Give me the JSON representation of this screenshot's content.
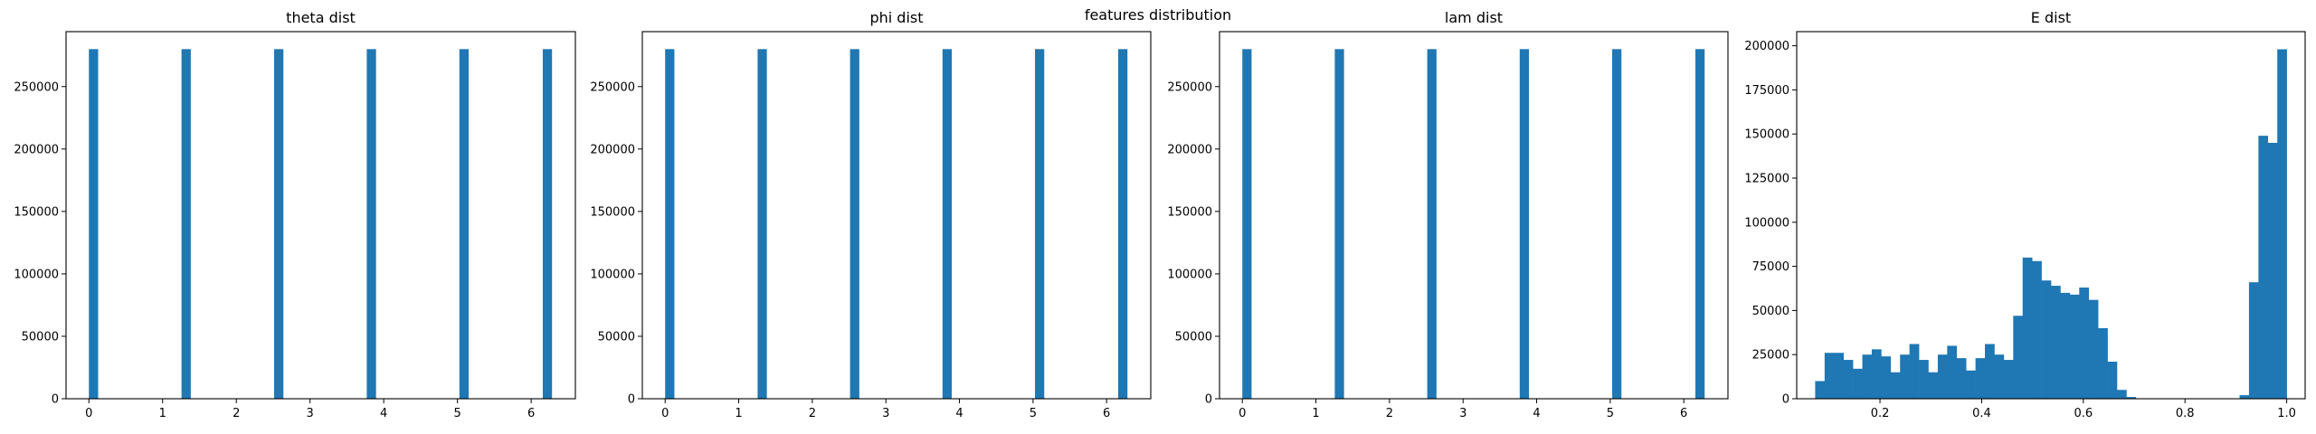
{
  "figure": {
    "suptitle": "features distribution"
  },
  "chart_data": [
    {
      "type": "histogram",
      "title": "theta dist",
      "bar_color": "#1f77b4",
      "bins": 50,
      "bin_range": [
        0,
        6.2832
      ],
      "bars": [
        {
          "x": 0.0,
          "height": 280000
        },
        {
          "x": 1.2566,
          "height": 280000
        },
        {
          "x": 2.5133,
          "height": 280000
        },
        {
          "x": 3.7699,
          "height": 280000
        },
        {
          "x": 5.0265,
          "height": 280000
        },
        {
          "x": 6.2832,
          "height": 280000
        }
      ],
      "xlim": [
        -0.31,
        6.6
      ],
      "ylim": [
        0,
        294000
      ],
      "xticks": [
        0,
        1,
        2,
        3,
        4,
        5,
        6
      ],
      "yticks": [
        0,
        50000,
        100000,
        150000,
        200000,
        250000
      ],
      "grid": false
    },
    {
      "type": "histogram",
      "title": "phi dist",
      "bar_color": "#1f77b4",
      "bins": 50,
      "bin_range": [
        0,
        6.2832
      ],
      "bars": [
        {
          "x": 0.0,
          "height": 280000
        },
        {
          "x": 1.2566,
          "height": 280000
        },
        {
          "x": 2.5133,
          "height": 280000
        },
        {
          "x": 3.7699,
          "height": 280000
        },
        {
          "x": 5.0265,
          "height": 280000
        },
        {
          "x": 6.2832,
          "height": 280000
        }
      ],
      "xlim": [
        -0.31,
        6.6
      ],
      "ylim": [
        0,
        294000
      ],
      "xticks": [
        0,
        1,
        2,
        3,
        4,
        5,
        6
      ],
      "yticks": [
        0,
        50000,
        100000,
        150000,
        200000,
        250000
      ],
      "grid": false
    },
    {
      "type": "histogram",
      "title": "lam dist",
      "bar_color": "#1f77b4",
      "bins": 50,
      "bin_range": [
        0,
        6.2832
      ],
      "bars": [
        {
          "x": 0.0,
          "height": 280000
        },
        {
          "x": 1.2566,
          "height": 280000
        },
        {
          "x": 2.5133,
          "height": 280000
        },
        {
          "x": 3.7699,
          "height": 280000
        },
        {
          "x": 5.0265,
          "height": 280000
        },
        {
          "x": 6.2832,
          "height": 280000
        }
      ],
      "xlim": [
        -0.31,
        6.6
      ],
      "ylim": [
        0,
        294000
      ],
      "xticks": [
        0,
        1,
        2,
        3,
        4,
        5,
        6
      ],
      "yticks": [
        0,
        50000,
        100000,
        150000,
        200000,
        250000
      ],
      "grid": false
    },
    {
      "type": "histogram",
      "title": "E dist",
      "bar_color": "#1f77b4",
      "bin_edges": [
        0.0725,
        0.0911,
        0.1096,
        0.1282,
        0.1467,
        0.1653,
        0.1838,
        0.2024,
        0.2209,
        0.2395,
        0.258,
        0.2766,
        0.2951,
        0.3137,
        0.3322,
        0.3508,
        0.3693,
        0.3879,
        0.4064,
        0.425,
        0.4435,
        0.4621,
        0.4806,
        0.4992,
        0.5177,
        0.5363,
        0.5548,
        0.5734,
        0.5919,
        0.6105,
        0.629,
        0.6476,
        0.6661,
        0.6847,
        0.7032,
        0.7218,
        0.7403,
        0.7589,
        0.7774,
        0.796,
        0.8145,
        0.8331,
        0.8516,
        0.8702,
        0.8887,
        0.9073,
        0.9258,
        0.9444,
        0.9629,
        0.9815,
        1.0
      ],
      "counts": [
        10000,
        26000,
        26000,
        22000,
        17000,
        25000,
        28000,
        24000,
        15000,
        25000,
        31000,
        22000,
        15000,
        25000,
        30000,
        23000,
        16000,
        23000,
        31000,
        25000,
        22000,
        47000,
        80000,
        78000,
        67000,
        64000,
        60000,
        59000,
        63000,
        56000,
        40000,
        21000,
        5000,
        1000,
        0,
        0,
        0,
        0,
        0,
        0,
        0,
        0,
        0,
        0,
        0,
        2000,
        66000,
        149000,
        145000,
        198000
      ],
      "xlim": [
        0.0362,
        1.0363
      ],
      "ylim": [
        0,
        208000
      ],
      "xticks": [
        0.2,
        0.4,
        0.6,
        0.8,
        1.0
      ],
      "xtick_labels": [
        "0.2",
        "0.4",
        "0.6",
        "0.8",
        "1.0"
      ],
      "yticks": [
        0,
        25000,
        50000,
        75000,
        100000,
        125000,
        150000,
        175000,
        200000
      ],
      "grid": false
    }
  ]
}
